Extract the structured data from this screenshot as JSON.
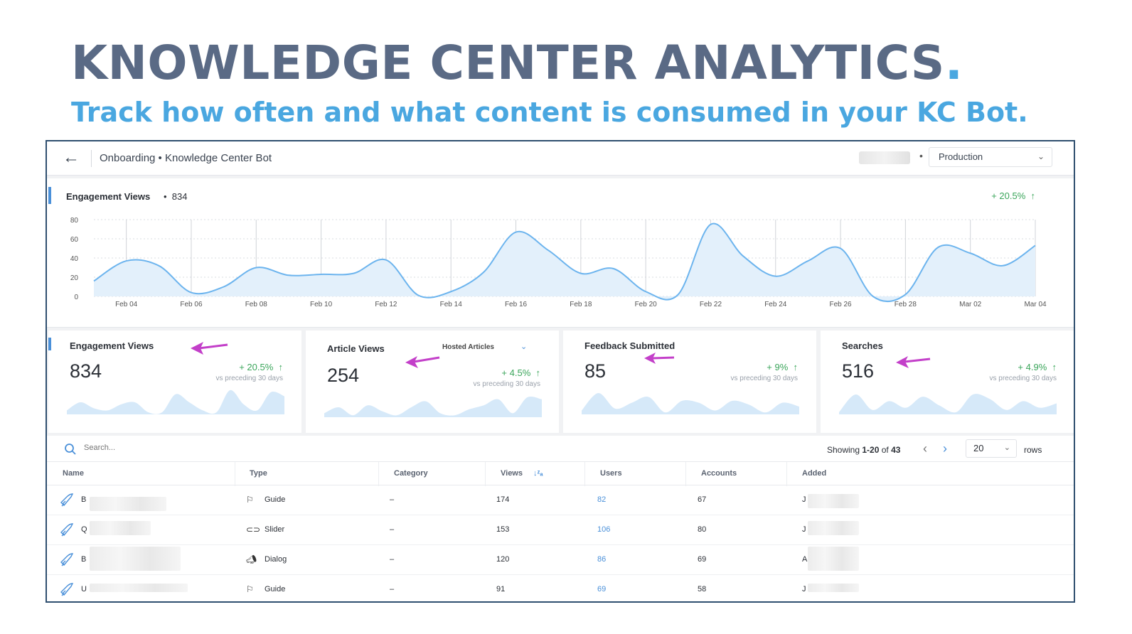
{
  "hero": {
    "title": "KNOWLEDGE CENTER ANALYTICS",
    "title_dot": ".",
    "subtitle": "Track how often and what content is consumed in your KC Bot."
  },
  "topbar": {
    "breadcrumb": "Onboarding • Knowledge Center Bot",
    "separator": "•",
    "environment": "Production"
  },
  "colors": {
    "accent": "#4a90d9",
    "positive": "#3aa55a",
    "title": "#5a6a85",
    "subtitle": "#4aa7e0",
    "arrow": "#c33fc9"
  },
  "engagement_card": {
    "title": "Engagement Views",
    "bullet": "•",
    "value": "834",
    "delta": "+ 20.5%"
  },
  "chart_data": {
    "type": "area",
    "title": "Engagement Views",
    "x": [
      "Feb 03",
      "Feb 04",
      "Feb 05",
      "Feb 06",
      "Feb 07",
      "Feb 08",
      "Feb 09",
      "Feb 10",
      "Feb 11",
      "Feb 12",
      "Feb 13",
      "Feb 14",
      "Feb 15",
      "Feb 16",
      "Feb 17",
      "Feb 18",
      "Feb 19",
      "Feb 20",
      "Feb 21",
      "Feb 22",
      "Feb 23",
      "Feb 24",
      "Feb 25",
      "Feb 26",
      "Feb 27",
      "Feb 28",
      "Mar 01",
      "Mar 02",
      "Mar 03",
      "Mar 04"
    ],
    "values": [
      16,
      37,
      32,
      4,
      10,
      30,
      22,
      23,
      24,
      38,
      1,
      5,
      25,
      67,
      48,
      24,
      29,
      5,
      2,
      75,
      42,
      21,
      37,
      50,
      0,
      2,
      51,
      45,
      32,
      53
    ],
    "xtick_labels": [
      "Feb 04",
      "Feb 06",
      "Feb 08",
      "Feb 10",
      "Feb 12",
      "Feb 14",
      "Feb 16",
      "Feb 18",
      "Feb 20",
      "Feb 22",
      "Feb 24",
      "Feb 26",
      "Feb 28",
      "Mar 02",
      "Mar 04"
    ],
    "yticks": [
      0,
      20,
      40,
      60,
      80
    ],
    "ylim": [
      0,
      80
    ],
    "xlabel": "",
    "ylabel": "",
    "grid": true
  },
  "kpis": [
    {
      "title": "Engagement Views",
      "value": "834",
      "delta": "+ 20.5%",
      "note": "vs preceding 30 days",
      "spark": [
        2,
        6,
        3,
        2,
        5,
        6,
        1,
        1,
        10,
        6,
        2,
        1,
        12,
        5,
        2,
        11,
        9
      ]
    },
    {
      "title": "Article Views",
      "extra": "Hosted Articles",
      "value": "254",
      "delta": "+ 4.5%",
      "note": "vs preceding 30 days",
      "spark": [
        2,
        5,
        1,
        6,
        3,
        1,
        5,
        8,
        2,
        1,
        4,
        6,
        9,
        2,
        10,
        9
      ]
    },
    {
      "title": "Feedback Submitted",
      "value": "85",
      "delta": "+ 9%",
      "note": "vs preceding 30 days",
      "spark": [
        2,
        11,
        3,
        6,
        9,
        1,
        7,
        6,
        2,
        7,
        5,
        1,
        6,
        4
      ]
    },
    {
      "title": "Searches",
      "value": "516",
      "delta": "+ 4.9%",
      "note": "vs preceding 30 days",
      "spark": [
        1,
        9,
        2,
        6,
        3,
        8,
        4,
        1,
        9,
        7,
        2,
        6,
        3,
        5
      ]
    }
  ],
  "table": {
    "search_placeholder": "Search...",
    "showing_prefix": "Showing",
    "showing_range": "1-20",
    "showing_of": "of",
    "showing_total": "43",
    "rows_per_page": "20",
    "rows_label": "rows",
    "columns": [
      "Name",
      "Type",
      "Category",
      "Views",
      "Users",
      "Accounts",
      "Added"
    ],
    "rows": [
      {
        "name": "B",
        "type": "Guide",
        "category": "–",
        "views": "174",
        "users": "82",
        "accounts": "67",
        "added": "J"
      },
      {
        "name": "Q",
        "type": "Slider",
        "category": "–",
        "views": "153",
        "users": "106",
        "accounts": "80",
        "added": "J"
      },
      {
        "name": "B",
        "type": "Dialog",
        "category": "–",
        "views": "120",
        "users": "86",
        "accounts": "69",
        "added": "A"
      },
      {
        "name": "U",
        "type": "Guide",
        "category": "–",
        "views": "91",
        "users": "69",
        "accounts": "58",
        "added": "J"
      }
    ]
  }
}
